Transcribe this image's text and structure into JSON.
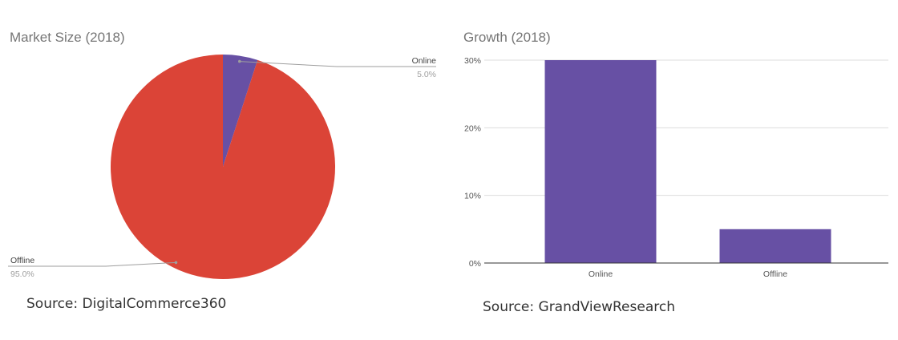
{
  "chart_data": [
    {
      "type": "pie",
      "title": "Market Size (2018)",
      "slices": [
        {
          "label": "Online",
          "value": 5.0,
          "percent_label": "5.0%",
          "color": "#6750a4"
        },
        {
          "label": "Offline",
          "value": 95.0,
          "percent_label": "95.0%",
          "color": "#db4437"
        }
      ],
      "legend": "labels-with-leader-lines",
      "source": "Source: DigitalCommerce360"
    },
    {
      "type": "bar",
      "title": "Growth (2018)",
      "categories": [
        "Online",
        "Offline"
      ],
      "values": [
        30,
        5
      ],
      "color": "#6750a4",
      "ylim": [
        0,
        30
      ],
      "yticks": [
        "0%",
        "10%",
        "20%",
        "30%"
      ],
      "grid": true,
      "source": "Source: GrandViewResearch"
    }
  ]
}
